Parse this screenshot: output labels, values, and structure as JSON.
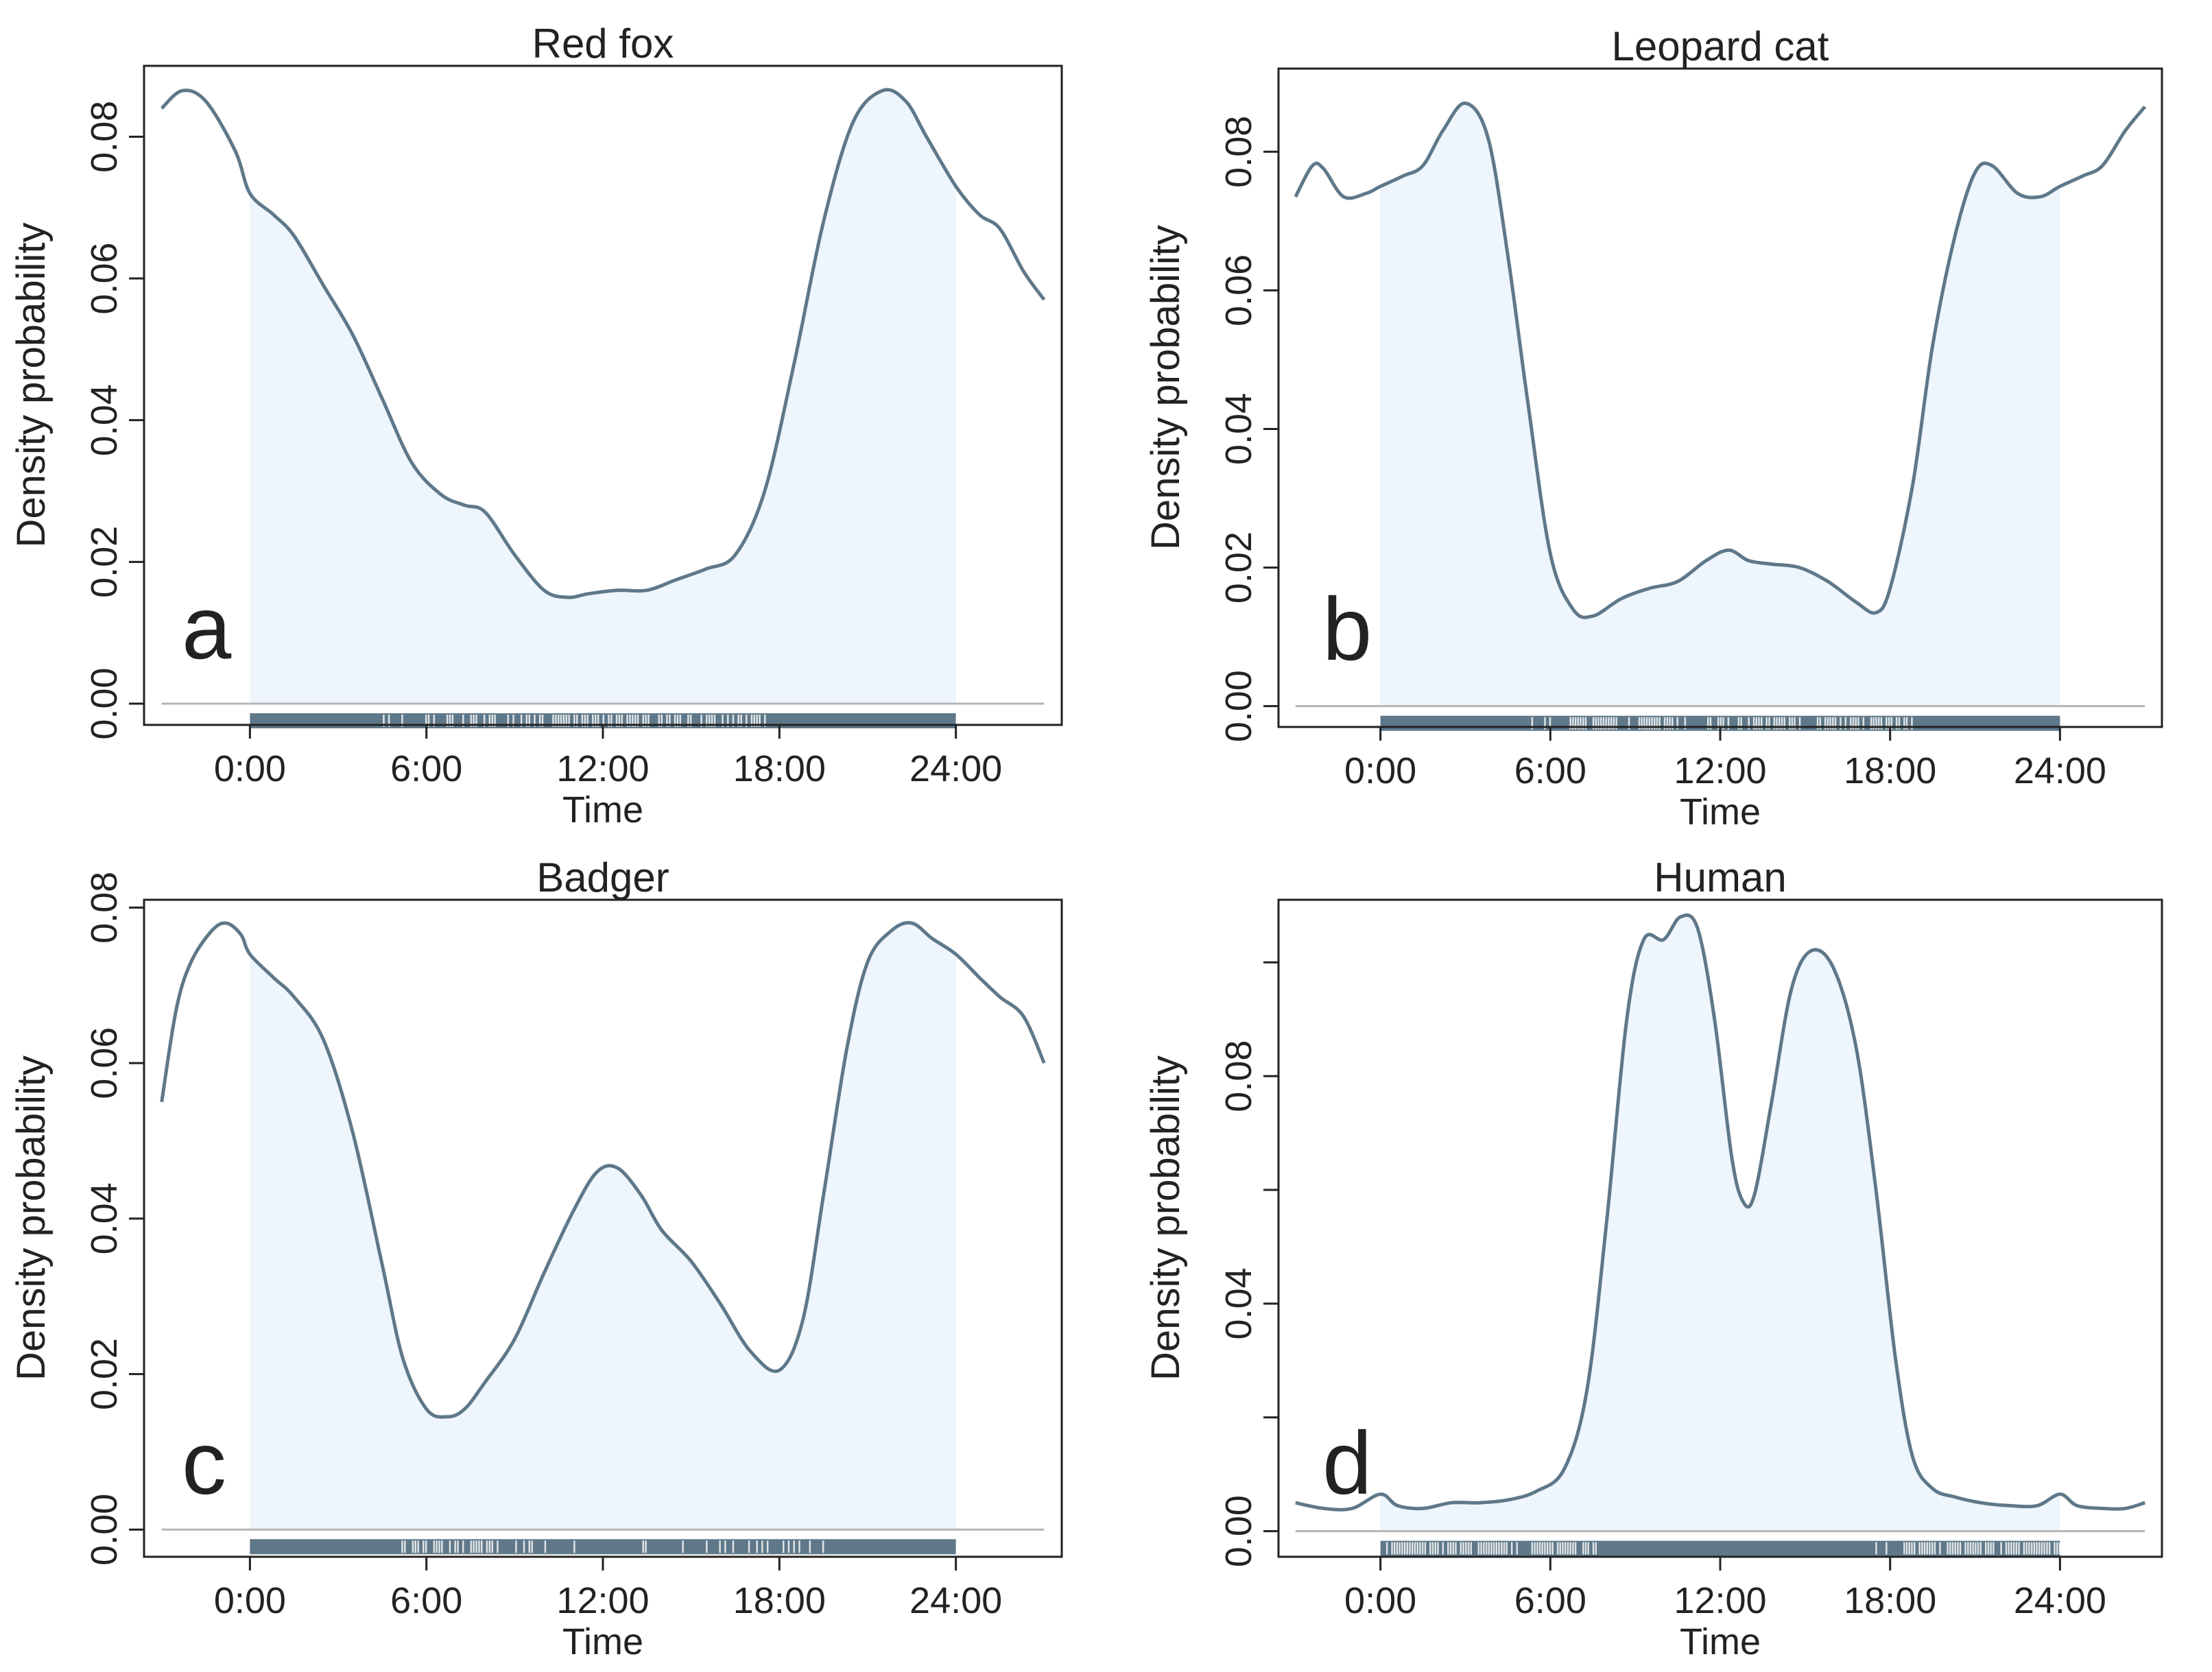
{
  "figure": {
    "xlabel": "Time",
    "ylabel": "Density probability",
    "line_color": "#5f7889",
    "fill_color": "#eef5fd",
    "rug_color": "#5f7889",
    "axis_color": "#222222",
    "zero_line_color": "#b5b5b5"
  },
  "chart_data": [
    {
      "type": "line",
      "panel_label": "a",
      "title": "Red fox",
      "xlabel": "Time",
      "ylabel": "Density probability",
      "xlim": [
        -3.6,
        27.6
      ],
      "ylim": [
        -0.003,
        0.09
      ],
      "shaded_range": [
        0,
        24
      ],
      "xticks": [
        0,
        6,
        12,
        18,
        24
      ],
      "xtick_labels": [
        "0:00",
        "6:00",
        "12:00",
        "18:00",
        "24:00"
      ],
      "yticks": [
        0,
        0.02,
        0.04,
        0.06,
        0.08
      ],
      "ytick_labels": [
        "0.00",
        "0.02",
        "0.04",
        "0.06",
        "0.08"
      ],
      "x": [
        -3,
        -2.3,
        -1.5,
        -0.5,
        0,
        0.8,
        1.5,
        2.5,
        3.5,
        4.5,
        5.5,
        6.5,
        7.3,
        8,
        9,
        10,
        10.8,
        11.5,
        12.5,
        13.5,
        14.5,
        15.5,
        16.5,
        17.5,
        18.5,
        19.5,
        20.5,
        21.5,
        22.3,
        23,
        24,
        24.8,
        25.5,
        26.3,
        27
      ],
      "y": [
        0.084,
        0.0865,
        0.085,
        0.078,
        0.072,
        0.069,
        0.066,
        0.059,
        0.052,
        0.043,
        0.034,
        0.0295,
        0.028,
        0.027,
        0.021,
        0.016,
        0.015,
        0.0155,
        0.016,
        0.016,
        0.0175,
        0.019,
        0.021,
        0.03,
        0.048,
        0.068,
        0.082,
        0.0865,
        0.085,
        0.08,
        0.073,
        0.069,
        0.067,
        0.061,
        0.057
      ]
    },
    {
      "type": "line",
      "panel_label": "b",
      "title": "Leopard cat",
      "xlabel": "Time",
      "ylabel": "Density probability",
      "xlim": [
        -3.6,
        27.6
      ],
      "ylim": [
        -0.003,
        0.092
      ],
      "shaded_range": [
        0,
        24
      ],
      "xticks": [
        0,
        6,
        12,
        18,
        24
      ],
      "xtick_labels": [
        "0:00",
        "6:00",
        "12:00",
        "18:00",
        "24:00"
      ],
      "yticks": [
        0,
        0.02,
        0.04,
        0.06,
        0.08
      ],
      "ytick_labels": [
        "0.00",
        "0.02",
        "0.04",
        "0.06",
        "0.08"
      ],
      "x": [
        -3,
        -2.4,
        -2,
        -1.3,
        -0.5,
        0,
        0.8,
        1.5,
        2.2,
        3,
        3.8,
        4.5,
        5.2,
        6,
        6.8,
        7.5,
        8.5,
        9.5,
        10.5,
        11.5,
        12.3,
        13,
        13.8,
        14.8,
        15.8,
        16.8,
        17.5,
        18,
        18.8,
        19.5,
        20.3,
        21,
        21.6,
        22.5,
        23.3,
        24,
        24.8,
        25.5,
        26.3,
        27
      ],
      "y": [
        0.0735,
        0.078,
        0.0775,
        0.0735,
        0.074,
        0.075,
        0.0765,
        0.078,
        0.083,
        0.087,
        0.082,
        0.065,
        0.044,
        0.022,
        0.014,
        0.013,
        0.0155,
        0.017,
        0.018,
        0.021,
        0.0225,
        0.021,
        0.0205,
        0.02,
        0.018,
        0.015,
        0.0135,
        0.017,
        0.032,
        0.052,
        0.068,
        0.077,
        0.078,
        0.074,
        0.0735,
        0.075,
        0.0765,
        0.078,
        0.083,
        0.0865
      ]
    },
    {
      "type": "line",
      "panel_label": "c",
      "title": "Badger",
      "xlabel": "Time",
      "ylabel": "Density probability",
      "xlim": [
        -3.6,
        27.6
      ],
      "ylim": [
        -0.0035,
        0.081
      ],
      "shaded_range": [
        0,
        24
      ],
      "xticks": [
        0,
        6,
        12,
        18,
        24
      ],
      "xtick_labels": [
        "0:00",
        "6:00",
        "12:00",
        "18:00",
        "24:00"
      ],
      "yticks": [
        0,
        0.02,
        0.04,
        0.06,
        0.08
      ],
      "ytick_labels": [
        "0.00",
        "0.02",
        "0.04",
        "0.06",
        "0.08"
      ],
      "x": [
        -3,
        -2.5,
        -2,
        -1.3,
        -0.8,
        -0.3,
        0,
        0.8,
        1.5,
        2.5,
        3.5,
        4.5,
        5.2,
        6,
        6.7,
        7.3,
        8,
        9,
        10,
        11,
        11.8,
        12.5,
        13.3,
        14,
        15,
        16,
        17,
        18,
        18.8,
        19.5,
        20.3,
        21,
        21.8,
        22.5,
        23.2,
        24,
        24.8,
        25.5,
        26.3,
        27
      ],
      "y": [
        0.055,
        0.067,
        0.073,
        0.077,
        0.078,
        0.0765,
        0.074,
        0.071,
        0.0685,
        0.063,
        0.051,
        0.034,
        0.022,
        0.0155,
        0.0145,
        0.0155,
        0.019,
        0.0245,
        0.033,
        0.041,
        0.046,
        0.0465,
        0.043,
        0.0385,
        0.0345,
        0.029,
        0.023,
        0.0205,
        0.027,
        0.043,
        0.062,
        0.073,
        0.077,
        0.078,
        0.076,
        0.074,
        0.071,
        0.0685,
        0.066,
        0.06
      ]
    },
    {
      "type": "line",
      "panel_label": "d",
      "title": "Human",
      "xlabel": "Time",
      "ylabel": "Density probability",
      "xlim": [
        -3.6,
        27.6
      ],
      "ylim": [
        -0.0045,
        0.111
      ],
      "shaded_range": [
        0,
        24
      ],
      "xticks": [
        0,
        6,
        12,
        18,
        24
      ],
      "xtick_labels": [
        "0:00",
        "6:00",
        "12:00",
        "18:00",
        "24:00"
      ],
      "yticks": [
        0,
        0.04,
        0.08
      ],
      "ytick_labels": [
        "0.00",
        "0.04",
        "0.08"
      ],
      "x": [
        -3,
        -2,
        -1,
        0,
        0.6,
        1.5,
        2.5,
        3.5,
        4.5,
        5.5,
        6.5,
        7.3,
        8,
        8.7,
        9.3,
        10,
        10.6,
        11.2,
        11.8,
        12.4,
        12.8,
        13.2,
        13.8,
        14.5,
        15.2,
        16,
        16.8,
        17.5,
        18.2,
        18.8,
        19.5,
        20.3,
        21.2,
        22.2,
        23.2,
        24,
        24.6,
        25.5,
        26.3,
        27
      ],
      "y": [
        0.005,
        0.004,
        0.004,
        0.0065,
        0.0045,
        0.004,
        0.005,
        0.005,
        0.0055,
        0.007,
        0.011,
        0.025,
        0.055,
        0.09,
        0.104,
        0.104,
        0.108,
        0.106,
        0.09,
        0.066,
        0.058,
        0.059,
        0.075,
        0.095,
        0.102,
        0.099,
        0.085,
        0.06,
        0.03,
        0.013,
        0.0075,
        0.006,
        0.005,
        0.0045,
        0.0045,
        0.0065,
        0.0045,
        0.004,
        0.004,
        0.005
      ]
    }
  ]
}
